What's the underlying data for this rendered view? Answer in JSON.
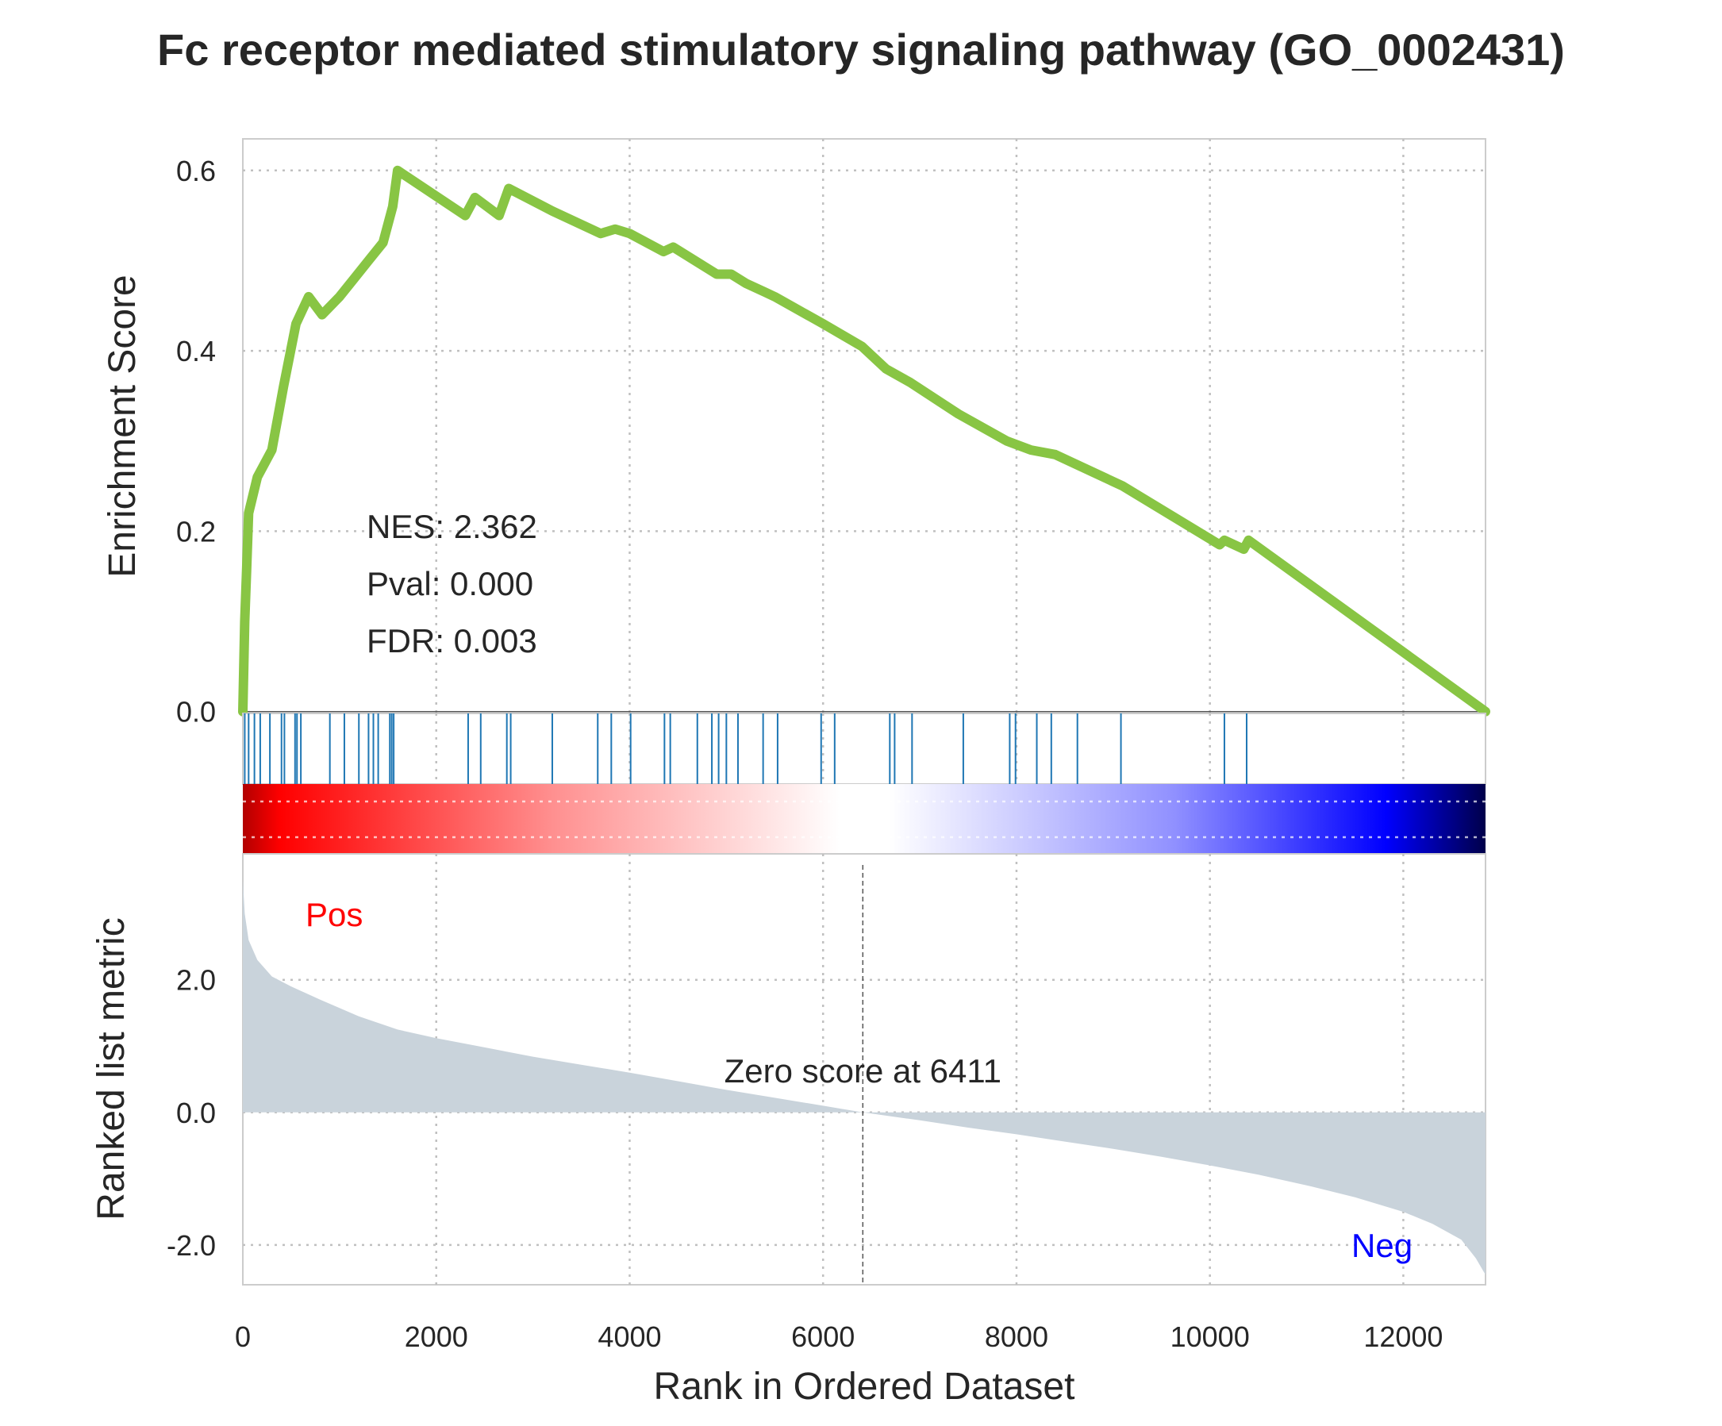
{
  "chart_data": {
    "type": "line",
    "title": "Fc receptor mediated stimulatory signaling pathway (GO_0002431)",
    "xlabel": "Rank in Ordered Dataset",
    "xlim": [
      0,
      12850
    ],
    "x_ticks": [
      "0",
      "2000",
      "4000",
      "6000",
      "8000",
      "10000",
      "12000"
    ],
    "x_tick_values": [
      0,
      2000,
      4000,
      6000,
      8000,
      10000,
      12000
    ],
    "grid": true,
    "enrichment": {
      "ylabel": "Enrichment Score",
      "ylim": [
        -0.002,
        0.635
      ],
      "y_ticks": [
        "0.0",
        "0.2",
        "0.4",
        "0.6"
      ],
      "y_tick_values": [
        0.0,
        0.2,
        0.4,
        0.6
      ],
      "line_color": "#88c544",
      "x": [
        0,
        20,
        40,
        60,
        150,
        300,
        420,
        550,
        680,
        820,
        1000,
        1150,
        1300,
        1450,
        1550,
        1600,
        2300,
        2400,
        2650,
        2750,
        3200,
        3700,
        3850,
        4000,
        4350,
        4450,
        4750,
        4900,
        5050,
        5200,
        5400,
        5500,
        6000,
        6400,
        6650,
        6900,
        7400,
        7900,
        8150,
        8400,
        8600,
        9100,
        10100,
        10150,
        10350,
        10400,
        12850
      ],
      "y": [
        0.0,
        0.1,
        0.16,
        0.22,
        0.26,
        0.29,
        0.36,
        0.43,
        0.46,
        0.44,
        0.46,
        0.48,
        0.5,
        0.52,
        0.56,
        0.6,
        0.55,
        0.57,
        0.55,
        0.58,
        0.555,
        0.53,
        0.535,
        0.53,
        0.51,
        0.515,
        0.495,
        0.485,
        0.485,
        0.475,
        0.465,
        0.46,
        0.43,
        0.405,
        0.38,
        0.365,
        0.33,
        0.3,
        0.29,
        0.285,
        0.275,
        0.25,
        0.185,
        0.19,
        0.18,
        0.19,
        0.0
      ],
      "annotations": {
        "nes": "NES: 2.362",
        "pval": "Pval: 0.000",
        "fdr": "FDR: 0.003"
      }
    },
    "hits": {
      "color": "#1f77b4",
      "x": [
        20,
        60,
        120,
        180,
        280,
        400,
        430,
        540,
        560,
        600,
        900,
        1050,
        1200,
        1300,
        1350,
        1400,
        1520,
        1540,
        1560,
        2330,
        2460,
        2730,
        2770,
        3200,
        3670,
        3810,
        4010,
        4360,
        4420,
        4700,
        4850,
        4920,
        5000,
        5120,
        5380,
        5530,
        5980,
        6120,
        6690,
        6740,
        6920,
        7450,
        7930,
        7990,
        8210,
        8360,
        8630,
        9080,
        10150,
        10380
      ]
    },
    "heatmap": {
      "colormap": "seismic",
      "range": "positive to negative"
    },
    "ranked_metric": {
      "ylabel": "Ranked list metric",
      "ylim": [
        -2.6,
        3.9
      ],
      "y_ticks": [
        "-2.0",
        "0.0",
        "2.0"
      ],
      "y_tick_values": [
        -2.0,
        0.0,
        2.0
      ],
      "fill_color": "#c9d3db",
      "x": [
        0,
        20,
        60,
        150,
        300,
        500,
        800,
        1200,
        1600,
        2000,
        2500,
        3000,
        3500,
        4000,
        4500,
        5000,
        5500,
        6000,
        6411,
        7000,
        7500,
        8000,
        8500,
        9000,
        9500,
        10000,
        10500,
        11000,
        11500,
        12000,
        12300,
        12600,
        12750,
        12850
      ],
      "y": [
        3.5,
        3.0,
        2.6,
        2.3,
        2.05,
        1.9,
        1.7,
        1.45,
        1.25,
        1.12,
        0.98,
        0.84,
        0.72,
        0.6,
        0.47,
        0.34,
        0.22,
        0.1,
        0.0,
        -0.12,
        -0.23,
        -0.33,
        -0.44,
        -0.55,
        -0.67,
        -0.8,
        -0.94,
        -1.1,
        -1.28,
        -1.5,
        -1.68,
        -1.92,
        -2.2,
        -2.45
      ],
      "zero_cross_x": 6411,
      "zero_label": "Zero score at 6411",
      "pos_label": "Pos",
      "neg_label": "Neg"
    }
  }
}
